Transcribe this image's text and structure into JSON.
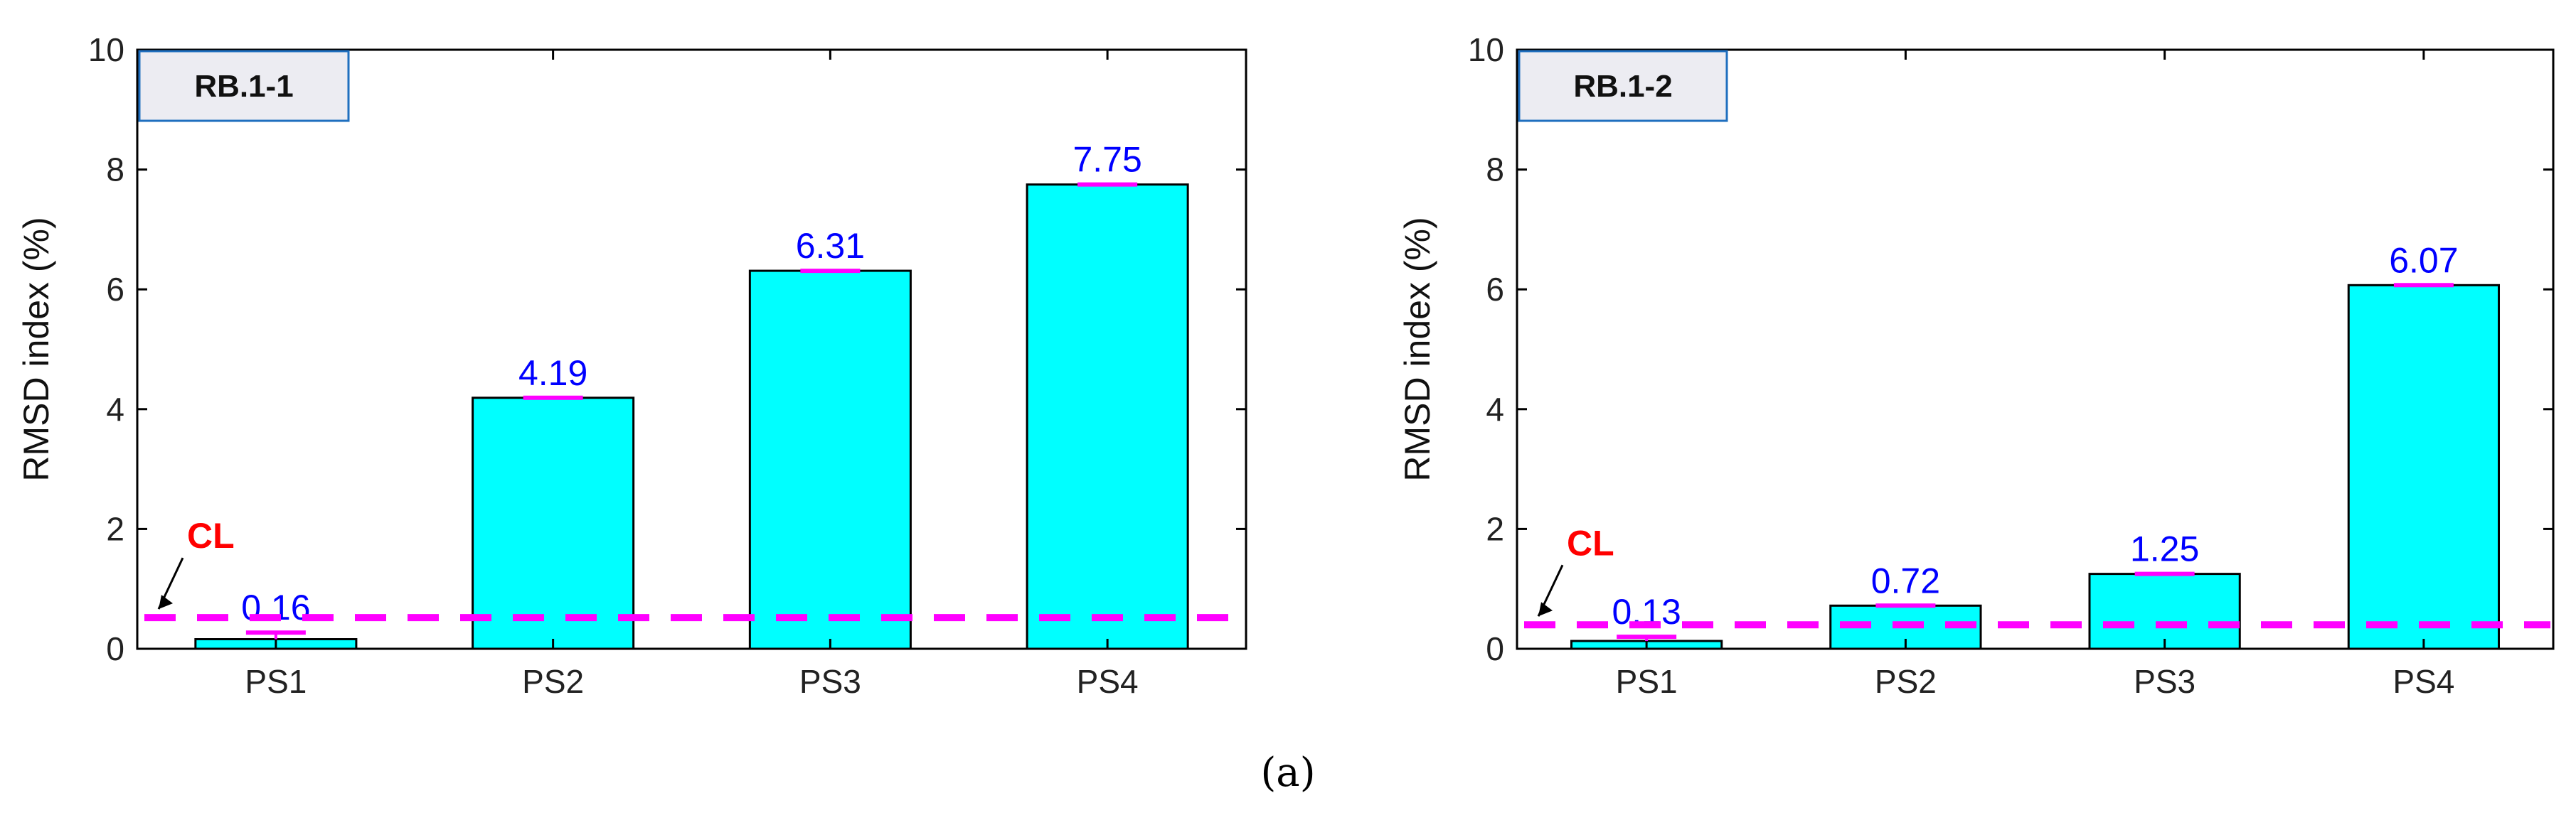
{
  "colors": {
    "bar_fill": "#00ffff",
    "bar_stroke": "#000000",
    "value_label": "#0000ff",
    "cl_line": "#ff00ff",
    "cl_label": "#ff0000",
    "errorbar": "#ff00ff",
    "legend_box_fill": "#ececf2",
    "legend_box_stroke": "#1f6fbf"
  },
  "caption": "(a)",
  "chart_data": [
    {
      "type": "bar",
      "panel_label": "RB.1-1",
      "categories": [
        "PS1",
        "PS2",
        "PS3",
        "PS4"
      ],
      "values": [
        0.16,
        4.19,
        6.31,
        7.75
      ],
      "value_labels": [
        "0.16",
        "4.19",
        "6.31",
        "7.75"
      ],
      "errorbar_top": [
        0.27,
        4.19,
        6.31,
        7.75
      ],
      "ylabel": "RMSD index (%)",
      "xlabel": "",
      "ylim": [
        0,
        10
      ],
      "yticks": [
        0,
        2,
        4,
        6,
        8,
        10
      ],
      "control_limit": {
        "label": "CL",
        "value": 0.52
      }
    },
    {
      "type": "bar",
      "panel_label": "RB.1-2",
      "categories": [
        "PS1",
        "PS2",
        "PS3",
        "PS4"
      ],
      "values": [
        0.13,
        0.72,
        1.25,
        6.07
      ],
      "value_labels": [
        "0.13",
        "0.72",
        "1.25",
        "6.07"
      ],
      "errorbar_top": [
        0.2,
        0.72,
        1.25,
        6.07
      ],
      "ylabel": "RMSD index (%)",
      "xlabel": "",
      "ylim": [
        0,
        10
      ],
      "yticks": [
        0,
        2,
        4,
        6,
        8,
        10
      ],
      "control_limit": {
        "label": "CL",
        "value": 0.4
      }
    }
  ]
}
